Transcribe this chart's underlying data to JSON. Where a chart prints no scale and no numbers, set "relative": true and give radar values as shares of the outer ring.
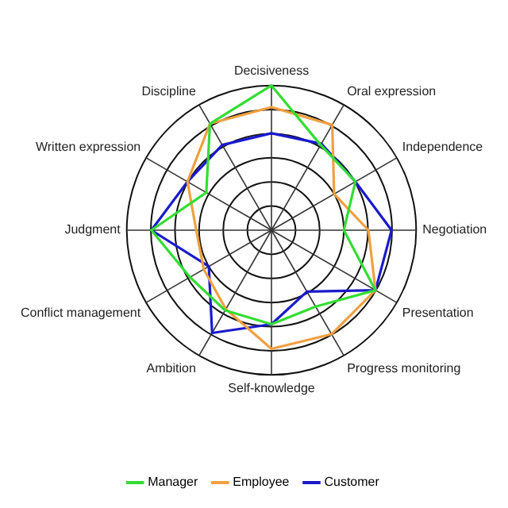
{
  "chart_data": {
    "type": "radar",
    "relative": true,
    "grid": true,
    "legend": "bottom",
    "marker": "none",
    "line_style": "solid",
    "categories": [
      "Decisiveness",
      "Oral expression",
      "Independence",
      "Negotiation",
      "Presentation",
      "Progress monitoring",
      "Self-knowledge",
      "Ambition",
      "Conflict management",
      "Judgment",
      "Written expression",
      "Discipline"
    ],
    "series": [
      {
        "name": "Manager",
        "color": "#33dd33",
        "values": [
          1.0,
          0.68,
          0.67,
          0.5,
          0.83,
          0.61,
          0.65,
          0.64,
          0.65,
          0.83,
          0.52,
          0.85
        ]
      },
      {
        "name": "Employee",
        "color": "#f0a040",
        "values": [
          0.85,
          0.84,
          0.5,
          0.67,
          0.83,
          0.83,
          0.82,
          0.63,
          0.54,
          0.52,
          0.67,
          0.85
        ]
      },
      {
        "name": "Customer",
        "color": "#1a1acc",
        "values": [
          0.67,
          0.69,
          0.67,
          0.83,
          0.83,
          0.49,
          0.65,
          0.82,
          0.5,
          0.83,
          0.67,
          0.68
        ]
      }
    ]
  }
}
